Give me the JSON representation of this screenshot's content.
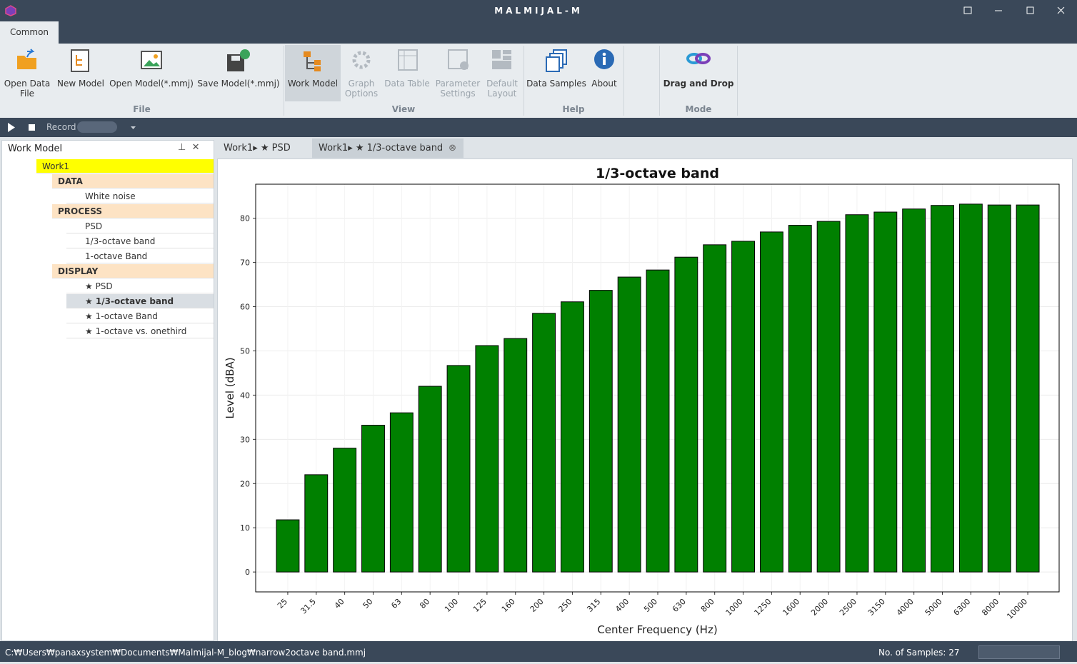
{
  "window": {
    "title": "MALMIJAL-M"
  },
  "ribbon": {
    "tab": "Common",
    "buttons": [
      "Open Data File",
      "New Model",
      "Open Model(*.mmj)",
      "Save Model(*.mmj)",
      "Work Model",
      "Graph Options",
      "Data Table",
      "Parameter Settings",
      "Default Layout",
      "Data Samples",
      "About",
      "Drag and Drop"
    ],
    "groups": [
      "File",
      "View",
      "Help",
      "Mode"
    ]
  },
  "toolbar": {
    "record": "Record"
  },
  "panel": {
    "title": "Work Model",
    "tree": {
      "root": "Work1",
      "groups": [
        {
          "name": "DATA",
          "items": [
            "White noise"
          ]
        },
        {
          "name": "PROCESS",
          "items": [
            "PSD",
            "1/3-octave band",
            "1-octave Band"
          ]
        },
        {
          "name": "DISPLAY",
          "items": [
            "★ PSD",
            "★ 1/3-octave band",
            "★ 1-octave Band",
            "★ 1-octave vs. onethird"
          ]
        }
      ]
    }
  },
  "doc_tabs": [
    "Work1▸ ★ PSD",
    "Work1▸ ★ 1/3-octave band"
  ],
  "status": {
    "path": "C:₩Users₩panaxsystem₩Documents₩Malmijal-M_blog₩narrow2octave band.mmj",
    "samples": "No. of Samples: 27"
  },
  "chart_data": {
    "type": "bar",
    "title": "1/3-octave band",
    "x_label": "Center Frequency (Hz)",
    "y_label": "Level (dBA)",
    "categories": [
      "25",
      "31.5",
      "40",
      "50",
      "63",
      "80",
      "100",
      "125",
      "160",
      "200",
      "250",
      "315",
      "400",
      "500",
      "630",
      "800",
      "1000",
      "1250",
      "1600",
      "2000",
      "2500",
      "3150",
      "4000",
      "5000",
      "6300",
      "8000",
      "10000"
    ],
    "values": [
      11.8,
      22.0,
      28.0,
      33.2,
      36.0,
      42.0,
      46.7,
      51.2,
      52.8,
      58.5,
      61.1,
      63.7,
      66.7,
      68.3,
      71.2,
      74.0,
      74.8,
      76.9,
      78.4,
      79.3,
      80.8,
      81.4,
      82.1,
      82.9,
      83.2,
      83.0,
      83.0
    ],
    "color": "#008000",
    "ylim": [
      -4.5,
      87.7
    ],
    "yticks": [
      0,
      10,
      20,
      30,
      40,
      50,
      60,
      70,
      80
    ],
    "grid": true
  }
}
